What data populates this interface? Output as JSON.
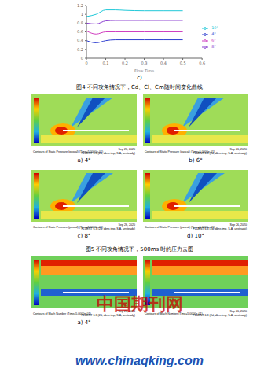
{
  "chart_data": {
    "type": "line",
    "x_label": "Flow Time",
    "x": [
      0,
      0.05,
      0.1,
      0.15,
      0.2,
      0.3,
      0.4,
      0.5
    ],
    "xlim": [
      0,
      0.6
    ],
    "xticks": [
      0,
      0.1,
      0.2,
      0.3,
      0.4,
      0.5,
      0.6
    ],
    "ylim": [
      0,
      1.2
    ],
    "yticks": [
      0,
      0.2,
      0.4,
      0.6,
      0.8,
      1,
      1.2
    ],
    "legend": "right",
    "grid": false,
    "series": [
      {
        "name": "4°",
        "color": "#2f3fd0",
        "values": [
          0.4,
          0.35,
          0.4,
          0.42,
          0.42,
          0.42,
          0.42,
          0.42
        ]
      },
      {
        "name": "6°",
        "color": "#d040c0",
        "values": [
          0.62,
          0.55,
          0.6,
          0.6,
          0.6,
          0.6,
          0.6,
          0.6
        ]
      },
      {
        "name": "8°",
        "color": "#8a3fd0",
        "values": [
          0.8,
          0.78,
          0.85,
          0.86,
          0.86,
          0.86,
          0.86,
          0.86
        ]
      },
      {
        "name": "10°",
        "color": "#20c8d8",
        "values": [
          0.95,
          1.0,
          1.1,
          1.1,
          1.09,
          1.08,
          1.08,
          1.08
        ]
      }
    ]
  },
  "chart_label": "c)",
  "caption_fig4": "图4 不同攻角情况下，Cd、Cl、Cm随时间变化曲线",
  "caption_fig5": "图5 不同攻角情况下，500ms 时的压力云图",
  "pressure_panels": [
    {
      "label": "a) 4°",
      "footer": "Contours of Static Pressure (pascal) (Time=5.0000e-01)",
      "date": "Sep 26, 2020",
      "solver": "FLUENT 6.3 (2d, dbns imp, S-A, unsteady)"
    },
    {
      "label": "b) 6°",
      "footer": "Contours of Static Pressure (pascal) (Time=5.0000e-01)",
      "date": "Sep 26, 2020",
      "solver": "FLUENT 6.3 (2d, dbns imp, S-A, unsteady)"
    },
    {
      "label": "c) 8°",
      "footer": "Contours of Static Pressure (pascal) (Time=5.0000e-01)",
      "date": "Sep 26, 2020",
      "solver": "FLUENT 6.3 (2d, dbns imp, S-A, unsteady)"
    },
    {
      "label": "d) 10°",
      "footer": "Contours of Static Pressure (pascal) (Time=5.0000e-01)",
      "date": "Sep 26, 2020",
      "solver": "FLUENT 6.3 (2d, dbns imp, S-A, unsteady)"
    }
  ],
  "mach_panels": [
    {
      "label": "a) 4°",
      "footer": "Contours of Mach Number (Time=5.0000e-01)",
      "date": "Sep 26, 2020",
      "solver": "FLUENT 6.3 (2d, dbns imp, S-A, unsteady)"
    },
    {
      "footer": "Contours of Mach Number (Time=5.0000e-01)",
      "date": "Sep 26, 2020",
      "solver": "FLUENT 6.3 (2d, dbns imp, S-A, unsteady)"
    }
  ],
  "watermark": "中国期刊网",
  "url": "www.chinaqking.com"
}
